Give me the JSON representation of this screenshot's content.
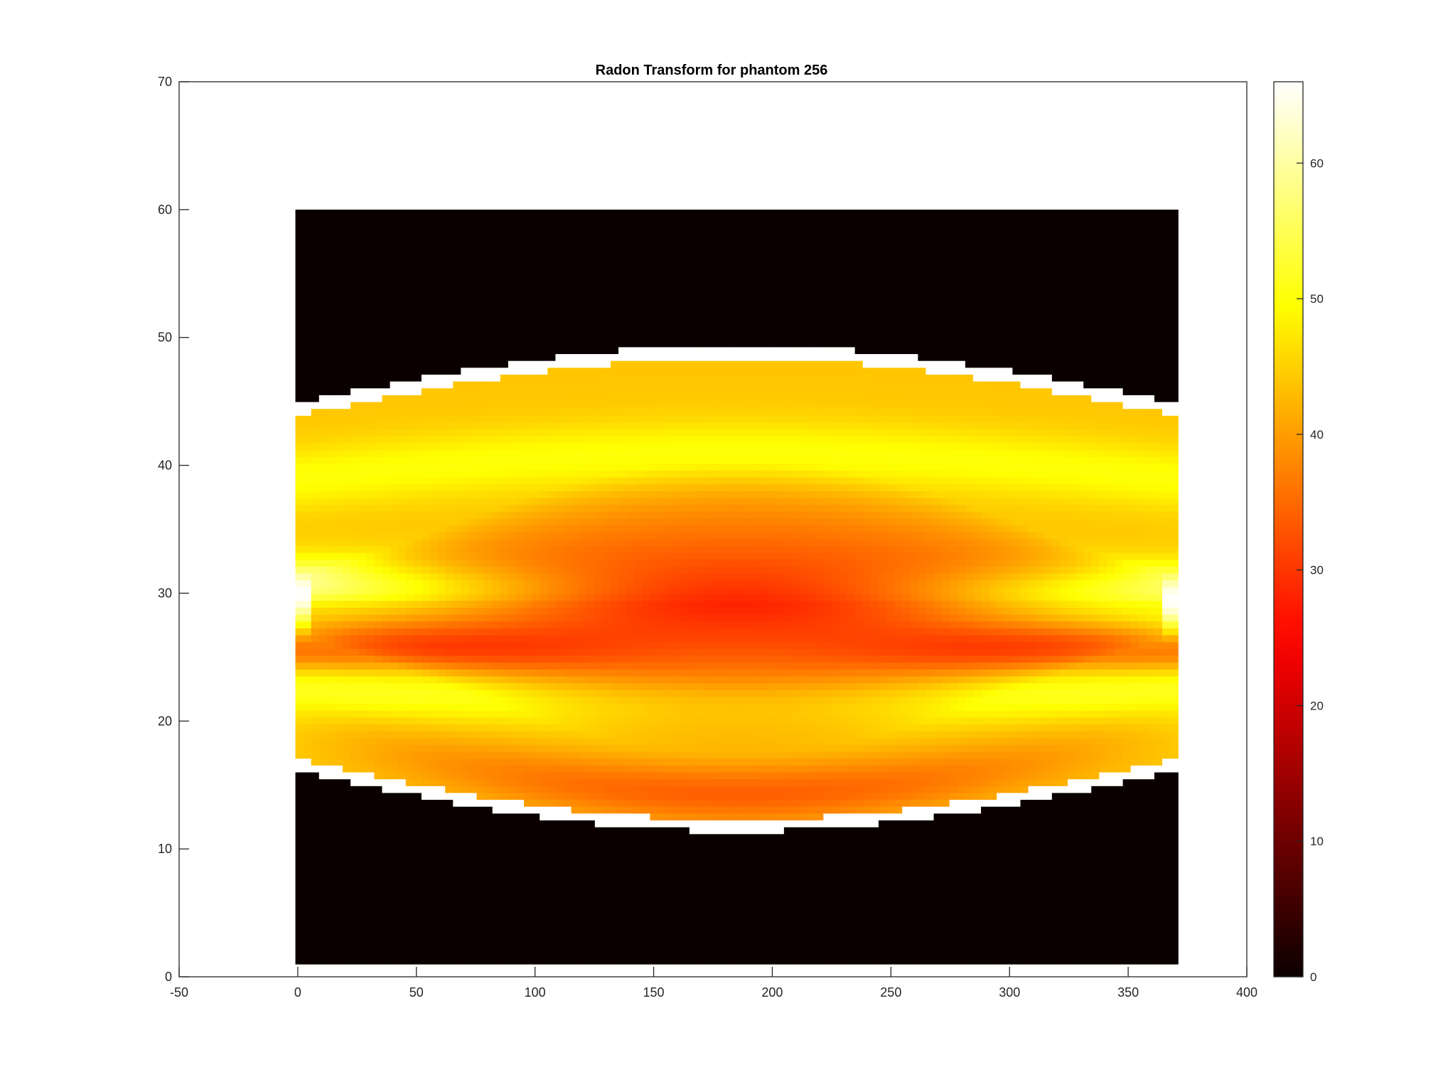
{
  "chart_data": {
    "type": "heatmap",
    "title": "Radon Transform for phantom 256",
    "xlabel": "",
    "ylabel": "",
    "xlim": [
      -50,
      400
    ],
    "ylim": [
      0,
      70
    ],
    "x_ticks": [
      -50,
      0,
      50,
      100,
      150,
      200,
      250,
      300,
      350,
      400
    ],
    "y_ticks": [
      0,
      10,
      20,
      30,
      40,
      50,
      60,
      70
    ],
    "image_extent": {
      "x": [
        -1,
        371
      ],
      "y": [
        1,
        60
      ]
    },
    "colormap": "hot",
    "grid": false,
    "colorbar": {
      "range": [
        0,
        66
      ],
      "ticks": [
        0,
        10,
        20,
        30,
        40,
        50,
        60
      ]
    },
    "value_profile": {
      "description_points": [
        {
          "x": 0,
          "lower_edge": 16.5,
          "upper_edge": 44.5,
          "bright_band_center": 30.5,
          "peak_value": 66
        },
        {
          "x": 180,
          "lower_edge": 11.8,
          "upper_edge": 49.0,
          "core_center": 29,
          "core_value": 28
        },
        {
          "x": 370,
          "lower_edge": 16.5,
          "upper_edge": 44.5,
          "bright_band_center": 29.5,
          "peak_value": 66
        }
      ],
      "edge_rim_value": 66,
      "outside_value": 0
    }
  }
}
